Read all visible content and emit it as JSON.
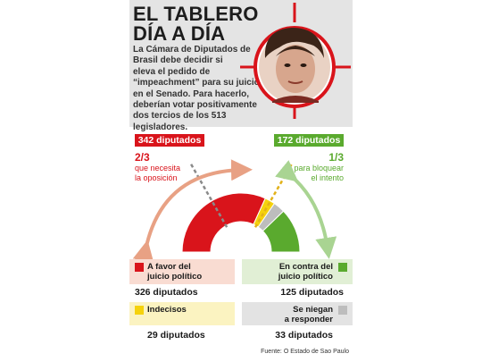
{
  "header": {
    "title_line1": "EL TABLERO",
    "title_line2": "DÍA A DÍA",
    "intro_lines": [
      "La Cámara de Diputados de",
      "Brasil debe decidir si",
      "eleva el pedido de",
      "“impeachment” para su juicio",
      "en el Senado. Para hacerlo,",
      "deberían votar positivamente",
      "dos tercios de los 513 legisladores."
    ]
  },
  "thresholds": {
    "left": {
      "count": "342 diputados",
      "fraction": "2/3",
      "desc_line1": "que necesita",
      "desc_line2": "la oposición"
    },
    "right": {
      "count": "172 diputados",
      "fraction": "1/3",
      "desc_line1": "para bloquear",
      "desc_line2": "el intento"
    }
  },
  "chart_data": {
    "type": "pie",
    "shape": "semicircle-donut",
    "total": 513,
    "series": [
      {
        "name": "A favor del juicio político",
        "value": 326,
        "color": "#d9141b"
      },
      {
        "name": "Indecisos",
        "value": 29,
        "color": "#f5d20c"
      },
      {
        "name": "Se niegan a responder",
        "value": 33,
        "color": "#bdbdbd"
      },
      {
        "name": "En contra del juicio político",
        "value": 125,
        "color": "#5aaa2e"
      }
    ],
    "threshold_values": [
      342,
      172
    ]
  },
  "legend": {
    "favor": {
      "label_line1": "A favor del",
      "label_line2": "juicio político",
      "count": "326 diputados"
    },
    "contra": {
      "label_line1": "En contra del",
      "label_line2": "juicio político",
      "count": "125 diputados"
    },
    "indecisos": {
      "label_line1": "Indecisos",
      "count": "29 diputados"
    },
    "niegan": {
      "label_line1": "Se niegan",
      "label_line2": "a responder",
      "count": "33 diputados"
    }
  },
  "colors": {
    "red": "#d9141b",
    "green": "#5aaa2e",
    "yellow": "#f5d20c",
    "gray": "#bdbdbd",
    "pink_box": "#f9dcd2",
    "green_box": "#e1efd5",
    "yellow_box": "#fbf3c1",
    "gray_box": "#e3e3e3",
    "arrow_left": "#e8a184",
    "arrow_right": "#a9d492"
  },
  "source": "Fuente: O Estado de Sao Paulo"
}
